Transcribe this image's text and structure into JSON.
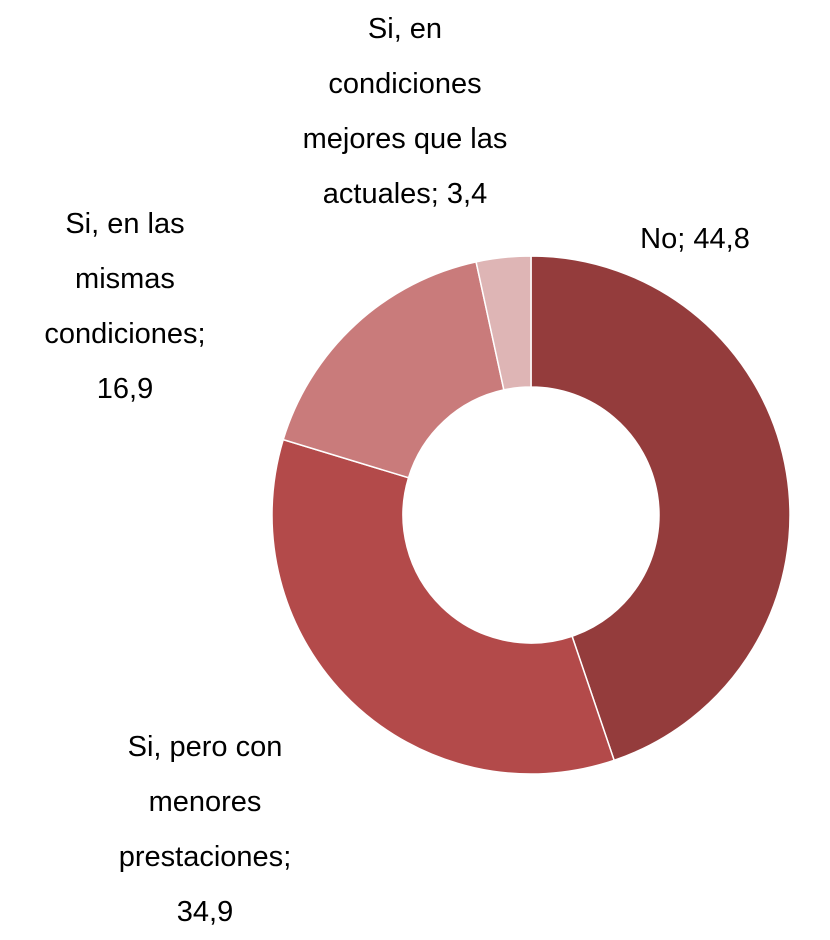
{
  "chart_data": {
    "type": "donut",
    "categories": [
      "No",
      "Si, pero con menores prestaciones",
      "Si, en las mismas condiciones",
      "Si, en condiciones mejores que las actuales"
    ],
    "values": [
      44.8,
      34.9,
      16.9,
      3.4
    ],
    "value_labels": [
      "44,8",
      "34,9",
      "16,9",
      "3,4"
    ],
    "separator": ";",
    "colors": [
      "#943c3c",
      "#b34a4a",
      "#c97b7b",
      "#deb5b5"
    ]
  }
}
